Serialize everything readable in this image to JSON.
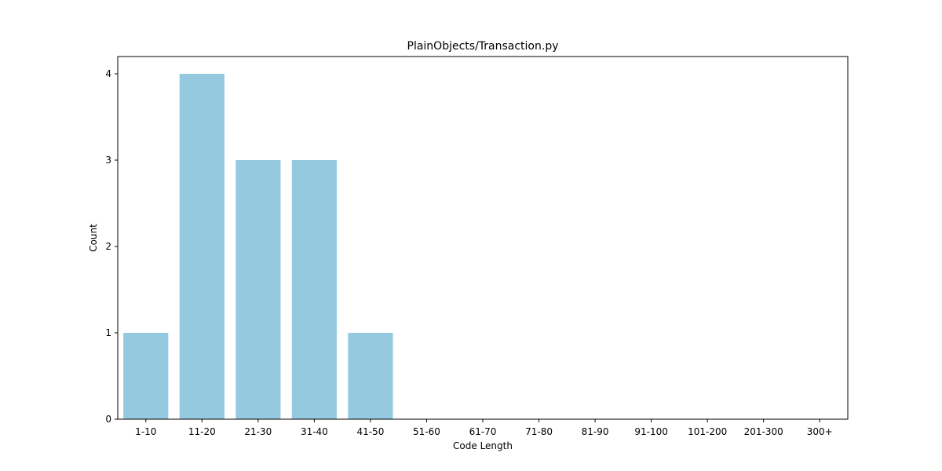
{
  "chart_data": {
    "type": "bar",
    "title": "PlainObjects/Transaction.py",
    "xlabel": "Code Length",
    "ylabel": "Count",
    "categories": [
      "1-10",
      "11-20",
      "21-30",
      "31-40",
      "41-50",
      "51-60",
      "61-70",
      "71-80",
      "81-90",
      "91-100",
      "101-200",
      "201-300",
      "300+"
    ],
    "values": [
      1,
      4,
      3,
      3,
      1,
      0,
      0,
      0,
      0,
      0,
      0,
      0,
      0
    ],
    "ylim": [
      0,
      4.2
    ],
    "yticks": [
      "0",
      "1",
      "2",
      "3",
      "4"
    ],
    "grid": false,
    "bar_color": "#95c9e0"
  }
}
